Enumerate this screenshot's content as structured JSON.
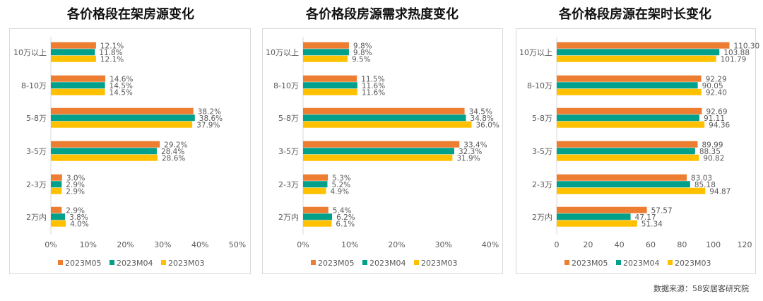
{
  "colors": {
    "2023M05": "#ED7D31",
    "2023M04": "#00A08A",
    "2023M03": "#FFC000"
  },
  "source": "数据来源：58安居客研究院",
  "chart_data": [
    {
      "type": "bar",
      "orientation": "horizontal",
      "title": "各价格段在架房源变化",
      "categories": [
        "10万以上",
        "8-10万",
        "5-8万",
        "3-5万",
        "2-3万",
        "2万内"
      ],
      "series": [
        {
          "name": "2023M05",
          "values": [
            12.1,
            14.6,
            38.2,
            29.2,
            3.0,
            2.9
          ],
          "labels": [
            "12.1%",
            "14.6%",
            "38.2%",
            "29.2%",
            "3.0%",
            "2.9%"
          ]
        },
        {
          "name": "2023M04",
          "values": [
            11.8,
            14.5,
            38.6,
            28.4,
            2.9,
            3.8
          ],
          "labels": [
            "11.8%",
            "14.5%",
            "38.6%",
            "28.4%",
            "2.9%",
            "3.8%"
          ]
        },
        {
          "name": "2023M03",
          "values": [
            12.1,
            14.5,
            37.9,
            28.6,
            2.9,
            4.0
          ],
          "labels": [
            "12.1%",
            "14.5%",
            "37.9%",
            "28.6%",
            "2.9%",
            "4.0%"
          ]
        }
      ],
      "xlim": [
        0,
        50
      ],
      "ticks": [
        "0%",
        "10%",
        "20%",
        "30%",
        "40%",
        "50%"
      ],
      "legend": "bottom"
    },
    {
      "type": "bar",
      "orientation": "horizontal",
      "title": "各价格段房源需求热度变化",
      "categories": [
        "10万以上",
        "8-10万",
        "5-8万",
        "3-5万",
        "2-3万",
        "2万内"
      ],
      "series": [
        {
          "name": "2023M05",
          "values": [
            9.8,
            11.5,
            34.5,
            33.4,
            5.3,
            5.4
          ],
          "labels": [
            "9.8%",
            "11.5%",
            "34.5%",
            "33.4%",
            "5.3%",
            "5.4%"
          ]
        },
        {
          "name": "2023M04",
          "values": [
            9.8,
            11.6,
            34.8,
            32.3,
            5.2,
            6.2
          ],
          "labels": [
            "9.8%",
            "11.6%",
            "34.8%",
            "32.3%",
            "5.2%",
            "6.2%"
          ]
        },
        {
          "name": "2023M03",
          "values": [
            9.5,
            11.6,
            36.0,
            31.9,
            4.9,
            6.1
          ],
          "labels": [
            "9.5%",
            "11.6%",
            "36.0%",
            "31.9%",
            "4.9%",
            "6.1%"
          ]
        }
      ],
      "xlim": [
        0,
        40
      ],
      "ticks": [
        "0%",
        "10%",
        "20%",
        "30%",
        "40%"
      ],
      "legend": "bottom"
    },
    {
      "type": "bar",
      "orientation": "horizontal",
      "title": "各价格段房源在架时长变化",
      "categories": [
        "10万以上",
        "8-10万",
        "5-8万",
        "3-5万",
        "2-3万",
        "2万内"
      ],
      "series": [
        {
          "name": "2023M05",
          "values": [
            110.3,
            92.29,
            92.69,
            89.99,
            83.03,
            57.57
          ],
          "labels": [
            "110.30",
            "92.29",
            "92.69",
            "89.99",
            "83.03",
            "57.57"
          ]
        },
        {
          "name": "2023M04",
          "values": [
            103.88,
            90.05,
            91.11,
            88.35,
            85.18,
            47.17
          ],
          "labels": [
            "103.88",
            "90.05",
            "91.11",
            "88.35",
            "85.18",
            "47.17"
          ]
        },
        {
          "name": "2023M03",
          "values": [
            101.79,
            92.4,
            94.36,
            90.82,
            94.87,
            51.34
          ],
          "labels": [
            "101.79",
            "92.40",
            "94.36",
            "90.82",
            "94.87",
            "51.34"
          ]
        }
      ],
      "xlim": [
        0,
        120
      ],
      "ticks": [
        "0",
        "20",
        "40",
        "60",
        "80",
        "100",
        "120"
      ],
      "legend": "bottom"
    }
  ]
}
